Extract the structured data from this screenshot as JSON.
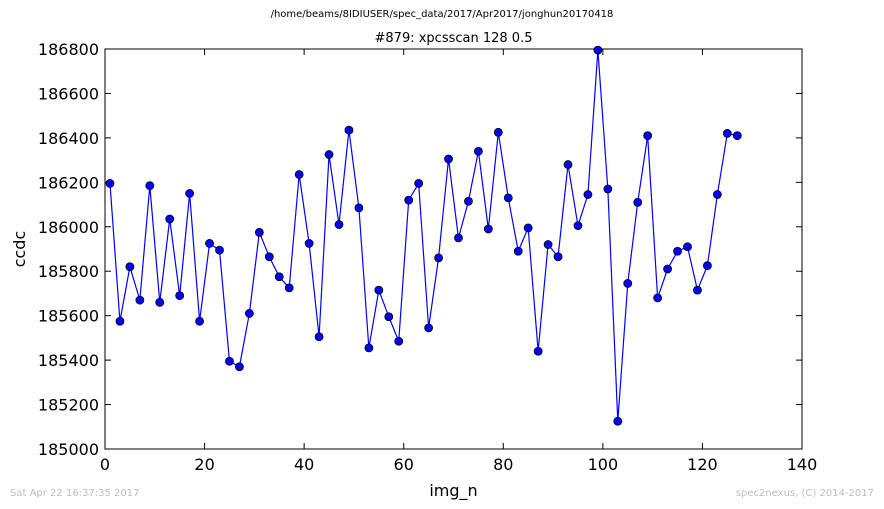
{
  "figure": {
    "supertitle": "/home/beams/8IDIUSER/spec_data/2017/Apr2017/jonghun20170418",
    "timestamp": "Sat Apr 22 16:37:35 2017",
    "credit": "spec2nexus, (C) 2014-2017"
  },
  "chart_data": {
    "type": "line",
    "title": "#879: xpcsscan 128 0.5",
    "xlabel": "img_n",
    "ylabel": "ccdc",
    "xlim": [
      0,
      140
    ],
    "ylim": [
      185000,
      186800
    ],
    "xticks": [
      0,
      20,
      40,
      60,
      80,
      100,
      120,
      140
    ],
    "yticks": [
      185000,
      185200,
      185400,
      185600,
      185800,
      186000,
      186200,
      186400,
      186600,
      186800
    ],
    "grid": false,
    "line_color": "#0000ff",
    "marker": "circle",
    "marker_color": "#0000ff",
    "series": [
      {
        "x": [
          1,
          3,
          5,
          7,
          9,
          11,
          13,
          15,
          17,
          19,
          21,
          23,
          25,
          27,
          29,
          31,
          33,
          35,
          37,
          39,
          41,
          43,
          45,
          47,
          49,
          51,
          53,
          55,
          57,
          59,
          61,
          63,
          65,
          67,
          69,
          71,
          73,
          75,
          77,
          79,
          81,
          83,
          85,
          87,
          89,
          91,
          93,
          95,
          97,
          99,
          101,
          103,
          105,
          107,
          109,
          111,
          113,
          115,
          117,
          119,
          121,
          123,
          125,
          127
        ],
        "values": [
          186195,
          185575,
          185820,
          185670,
          186185,
          185660,
          186035,
          185690,
          186150,
          185575,
          185925,
          185895,
          185395,
          185370,
          185610,
          185975,
          185865,
          185775,
          185725,
          186235,
          185925,
          185505,
          186325,
          186010,
          186435,
          186085,
          185455,
          185715,
          185595,
          185485,
          186120,
          186195,
          185545,
          185860,
          186305,
          185950,
          186115,
          186340,
          185990,
          186425,
          186130,
          185890,
          185995,
          185440,
          185920,
          185865,
          186280,
          186005,
          186145,
          186795,
          186170,
          185125,
          185745,
          186110,
          186410,
          185680,
          185810,
          185890,
          185910,
          185715,
          185825,
          186145,
          186420,
          186410
        ]
      }
    ]
  }
}
